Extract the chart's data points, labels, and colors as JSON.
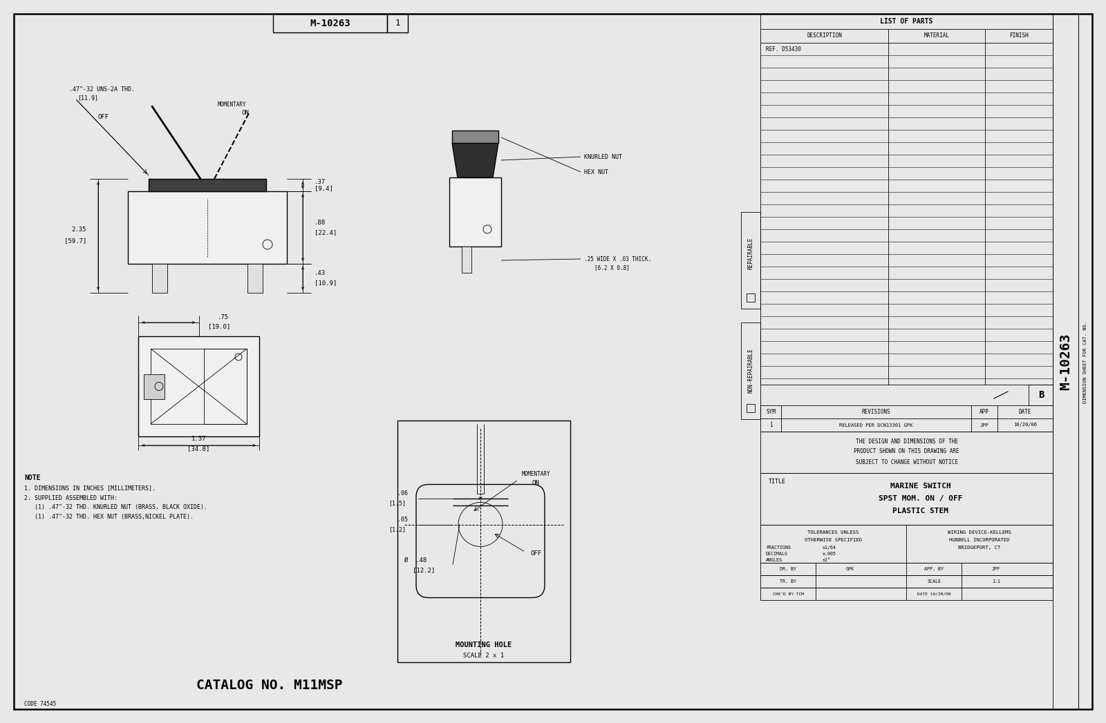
{
  "bg_color": "#e8e8e8",
  "paper_color": "#f5f5f0",
  "line_color": "#000000",
  "title_block": {
    "drawing_number": "M-10263",
    "rev": "1",
    "title_line1": "MARINE SWITCH",
    "title_line2": "SPST MOM. ON / OFF",
    "title_line3": "PLASTIC STEM",
    "company": "WIRING DEVICE-KELLEMS",
    "company2": "HUBBELL INCORPORATED",
    "city": "BRIDGEPORT, CT",
    "dr_by": "GPK",
    "app_by": "JPP",
    "tr_by": "",
    "scale": "1:1",
    "chkd_by": "TCM",
    "date": "10/20/06",
    "tolerances_title": "TOLERANCES UNLESS",
    "tolerances_subtitle": "OTHERWISE SPECIFIED",
    "fractions": "±1/64",
    "decimals": "±.005",
    "angles": "±2°",
    "list_of_parts_title": "LIST OF PARTS",
    "desc_col": "DESCRIPTION",
    "mat_col": "MATERIAL",
    "fin_col": "FINISH",
    "ref_part": "REF. D53430",
    "sym_col": "SYM",
    "rev_col": "REVISIONS",
    "app_col": "APP",
    "date_col": "DATE",
    "notice_line1": "THE DESIGN AND DIMENSIONS OF THE",
    "notice_line2": "PRODUCT SHOWN ON THIS DRAWING ARE",
    "notice_line3": "SUBJECT TO CHANGE WITHOUT NOTICE",
    "repairable": "REPAIRABLE",
    "non_repairable": "NON-REPAIRABLE",
    "dim_sheet": "DIMENSION SHEET FOR CAT. NO.",
    "catalog_no": "CATALOG NO. M11MSP",
    "code": "CODE 74545",
    "b_label": "B",
    "rev_entry_num": "1",
    "rev_entry_desc": "RELEASED PER DCN13301 GPK",
    "rev_entry_app": "JPP",
    "rev_entry_date": "10/20/06"
  },
  "front_view": {
    "thread_label": ".47\"-32 UNS-2A THD.",
    "thread_mm": "[11.9]",
    "off_label": "OFF",
    "momentary_label": "MOMENTARY",
    "on_label": "ON",
    "dim_037": ".37",
    "dim_037mm": "[9.4]",
    "dim_235": "2.35",
    "dim_235mm": "[59.7]",
    "dim_088": ".88",
    "dim_088mm": "[22.4]",
    "dim_043": ".43",
    "dim_043mm": "[10.9]"
  },
  "side_view": {
    "knurled_label": "KNURLED NUT",
    "hex_label": "HEX NUT",
    "wide_label": ".25 WIDE X .03 THICK.",
    "wide_mm": "[6.2 X 0.8]"
  },
  "bottom_view": {
    "dim_075": ".75",
    "dim_075mm": "[19.0]",
    "dim_137": "1.37",
    "dim_137mm": "[34.8]"
  },
  "mounting_hole": {
    "dim_006": ".06",
    "dim_006mm": "[1.5]",
    "dim_005": ".05",
    "dim_005mm": "[1.2]",
    "dim_048": ".48",
    "dim_048mm": "[12.2]",
    "off_label": "OFF",
    "momentary_label": "MOMENTARY",
    "on_label": "ON",
    "title": "MOUNTING HOLE",
    "scale_label": "SCALE 2 x 1",
    "phi": "Ø"
  },
  "notes": {
    "title": "NOTE",
    "line1": "1. DIMENSIONS IN INCHES [MILLIMETERS].",
    "line2": "2. SUPPLIED ASSEMBLED WITH:",
    "line3": "   (1) .47\"-32 THD. KNURLED NUT (BRASS, BLACK OXIDE).",
    "line4": "   (1) .47\"-32 THD. HEX NUT (BRASS,NICKEL PLATE)."
  }
}
